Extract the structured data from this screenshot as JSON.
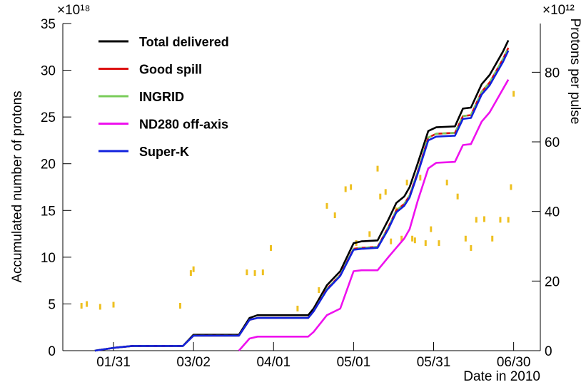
{
  "chart_data": {
    "type": "line",
    "y_label": "Accumulated number of protons",
    "y2_label": "Protons per pulse",
    "x_label": "Date in 2010",
    "y_multiplier": "×10¹⁸",
    "y2_multiplier": "×10¹²",
    "xlim": [
      "2010-01-12",
      "2010-07-10"
    ],
    "xticks": [
      {
        "value": "2010-01-31",
        "label": "01/31"
      },
      {
        "value": "2010-03-02",
        "label": "03/02"
      },
      {
        "value": "2010-04-01",
        "label": "04/01"
      },
      {
        "value": "2010-05-01",
        "label": "05/01"
      },
      {
        "value": "2010-05-31",
        "label": "05/31"
      },
      {
        "value": "2010-06-30",
        "label": "06/30"
      }
    ],
    "ylim": [
      0,
      35
    ],
    "yticks": [
      0,
      5,
      10,
      15,
      20,
      25,
      30,
      35
    ],
    "y2lim": [
      0,
      94
    ],
    "y2ticks": [
      0,
      20,
      40,
      60,
      80
    ],
    "legend": "top-left",
    "x": [
      "2010-01-24",
      "2010-01-31",
      "2010-02-07",
      "2010-02-26",
      "2010-03-02",
      "2010-03-19",
      "2010-03-23",
      "2010-03-26",
      "2010-04-14",
      "2010-04-16",
      "2010-04-21",
      "2010-04-26",
      "2010-05-01",
      "2010-05-04",
      "2010-05-10",
      "2010-05-14",
      "2010-05-17",
      "2010-05-20",
      "2010-05-22",
      "2010-05-25",
      "2010-05-29",
      "2010-06-01",
      "2010-06-08",
      "2010-06-11",
      "2010-06-14",
      "2010-06-18",
      "2010-06-21",
      "2010-06-23",
      "2010-06-26",
      "2010-06-28"
    ],
    "series": [
      {
        "name": "Total delivered",
        "color": "#000000",
        "values": [
          0,
          0.3,
          0.5,
          0.5,
          1.7,
          1.7,
          3.5,
          3.8,
          3.8,
          4.5,
          7,
          8.5,
          11.5,
          11.7,
          11.8,
          14,
          15.8,
          16.5,
          17.5,
          20,
          23.5,
          23.9,
          24,
          25.9,
          26,
          28.5,
          29.5,
          30.5,
          32,
          33.2
        ]
      },
      {
        "name": "Good spill",
        "color": "#dd1111",
        "values": [
          0,
          0.3,
          0.5,
          0.5,
          1.6,
          1.6,
          3.3,
          3.5,
          3.5,
          4.2,
          6.6,
          8.1,
          10.9,
          11.0,
          11.1,
          13.2,
          15.0,
          15.7,
          16.6,
          19.1,
          22.8,
          23.2,
          23.3,
          25.1,
          25.2,
          27.7,
          28.7,
          29.7,
          31.2,
          32.4
        ]
      },
      {
        "name": "INGRID",
        "color": "#7acc5a",
        "dashed": true,
        "values": [
          0,
          0.3,
          0.5,
          0.5,
          1.6,
          1.6,
          3.3,
          3.5,
          3.5,
          4.2,
          6.6,
          8.1,
          10.9,
          11.0,
          11.1,
          13.2,
          15.0,
          15.7,
          16.6,
          19.1,
          22.8,
          23.2,
          23.3,
          25.1,
          25.2,
          27.7,
          28.7,
          29.7,
          31.2,
          32.4
        ]
      },
      {
        "name": "ND280 off-axis",
        "color": "#ee11ee",
        "values": [
          null,
          null,
          null,
          null,
          null,
          0,
          1.3,
          1.5,
          1.5,
          2.0,
          3.8,
          4.5,
          8.5,
          8.6,
          8.6,
          10.0,
          11.0,
          12.0,
          13.0,
          16.0,
          19.5,
          20.1,
          20.2,
          22.0,
          22.1,
          24.5,
          25.5,
          26.5,
          28.0,
          29.0
        ]
      },
      {
        "name": "Super-K",
        "color": "#1122dd",
        "values": [
          0,
          0.3,
          0.5,
          0.5,
          1.6,
          1.6,
          3.3,
          3.5,
          3.5,
          4.2,
          6.5,
          8.0,
          10.8,
          10.9,
          11.0,
          13.0,
          14.8,
          15.5,
          16.4,
          18.9,
          22.5,
          22.9,
          23.0,
          24.8,
          24.9,
          27.4,
          28.4,
          29.4,
          30.9,
          32.1
        ]
      }
    ],
    "pulse_series": {
      "axis": "y2",
      "color": "#eec020",
      "x": [
        "2010-01-19",
        "2010-01-21",
        "2010-01-26",
        "2010-01-31",
        "2010-02-25",
        "2010-03-01",
        "2010-03-02",
        "2010-03-22",
        "2010-03-25",
        "2010-03-28",
        "2010-03-31",
        "2010-04-10",
        "2010-04-18",
        "2010-04-21",
        "2010-04-24",
        "2010-04-28",
        "2010-04-30",
        "2010-05-02",
        "2010-05-07",
        "2010-05-10",
        "2010-05-11",
        "2010-05-13",
        "2010-05-15",
        "2010-05-17",
        "2010-05-19",
        "2010-05-21",
        "2010-05-23",
        "2010-05-24",
        "2010-05-26",
        "2010-05-28",
        "2010-05-30",
        "2010-06-02",
        "2010-06-05",
        "2010-06-09",
        "2010-06-12",
        "2010-06-14",
        "2010-06-16",
        "2010-06-19",
        "2010-06-22",
        "2010-06-25",
        "2010-06-28",
        "2010-06-29",
        "2010-06-30"
      ],
      "values": [
        12.9,
        13.4,
        12.6,
        13.2,
        12.9,
        22.3,
        23.4,
        22.5,
        22.3,
        22.5,
        29.5,
        12.1,
        17.4,
        41.6,
        38.9,
        46.4,
        47.0,
        30.9,
        33.5,
        52.3,
        44.3,
        45.6,
        31.4,
        40.3,
        32.2,
        48.3,
        32.2,
        31.7,
        49.7,
        30.9,
        34.9,
        30.9,
        48.3,
        44.3,
        32.2,
        29.5,
        37.6,
        37.8,
        32.2,
        37.6,
        37.6,
        47.0,
        73.8
      ]
    }
  }
}
